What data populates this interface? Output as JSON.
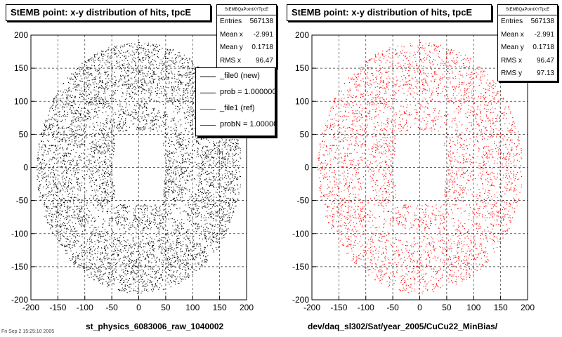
{
  "panels": [
    {
      "title": "StEMB point: x-y distribution of hits, tpcE",
      "stats": {
        "name": "StEMBQaPointXYTpcE",
        "entries_label": "Entries",
        "entries_value": "567138",
        "meanx_label": "Mean x",
        "meanx_value": "-2.991",
        "meany_label": "Mean y",
        "meany_value": "0.1718",
        "rmsx_label": "RMS x",
        "rmsx_value": "96.47"
      },
      "xcaption": "st_physics_6083006_raw_1040002",
      "color": "#000000"
    },
    {
      "title": "StEMB point: x-y distribution of hits, tpcE",
      "stats": {
        "name": "StEMBQaPointXYTpcE",
        "entries_label": "Entries",
        "entries_value": "567138",
        "meanx_label": "Mean x",
        "meanx_value": "-2.991",
        "meany_label": "Mean y",
        "meany_value": "0.1718",
        "rmsx_label": "RMS x",
        "rmsx_value": "96.47",
        "rmsy_label": "RMS y",
        "rmsy_value": "97.13"
      },
      "xcaption": "dev/daq_sl302/Sat/year_2005/CuCu22_MinBias/",
      "color": "#ff0000"
    }
  ],
  "legend": {
    "entries": [
      {
        "label": "_file0 (new)",
        "color": "#000000"
      },
      {
        "label": "prob = 1.000000",
        "color": "#000000"
      },
      {
        "label": "_file1 (ref)",
        "color": "#ff0000"
      },
      {
        "label": "probN = 1.000000",
        "color": "#ff0000"
      }
    ]
  },
  "footer": "Fri Sep 2 15:25:10 2005",
  "chart_data": [
    {
      "type": "scatter",
      "title": "StEMB point: x-y distribution of hits, tpcE",
      "xlabel": "st_physics_6083006_raw_1040002",
      "ylabel": "",
      "xlim": [
        -200,
        200
      ],
      "ylim": [
        -200,
        200
      ],
      "xticks": [
        -200,
        -150,
        -100,
        -50,
        0,
        50,
        100,
        150,
        200
      ],
      "yticks": [
        -200,
        -150,
        -100,
        -50,
        0,
        50,
        100,
        150,
        200
      ],
      "grid": true,
      "series": [
        {
          "color": "#000000",
          "shape": "ring of hits",
          "inner_radius": 50,
          "outer_radius": 190,
          "entries": 567138,
          "mean_x": -2.991,
          "mean_y": 0.1718,
          "rms_x": 96.47
        }
      ]
    },
    {
      "type": "scatter",
      "title": "StEMB point: x-y distribution of hits, tpcE",
      "xlabel": "dev/daq_sl302/Sat/year_2005/CuCu22_MinBias/",
      "ylabel": "",
      "xlim": [
        -200,
        200
      ],
      "ylim": [
        -200,
        200
      ],
      "xticks": [
        -200,
        -150,
        -100,
        -50,
        0,
        50,
        100,
        150,
        200
      ],
      "yticks": [
        -200,
        -150,
        -100,
        -50,
        0,
        50,
        100,
        150,
        200
      ],
      "grid": true,
      "series": [
        {
          "color": "#ff0000",
          "shape": "ring of hits",
          "inner_radius": 50,
          "outer_radius": 190,
          "entries": 567138,
          "mean_x": -2.991,
          "mean_y": 0.1718,
          "rms_x": 96.47,
          "rms_y": 97.13
        }
      ]
    }
  ]
}
